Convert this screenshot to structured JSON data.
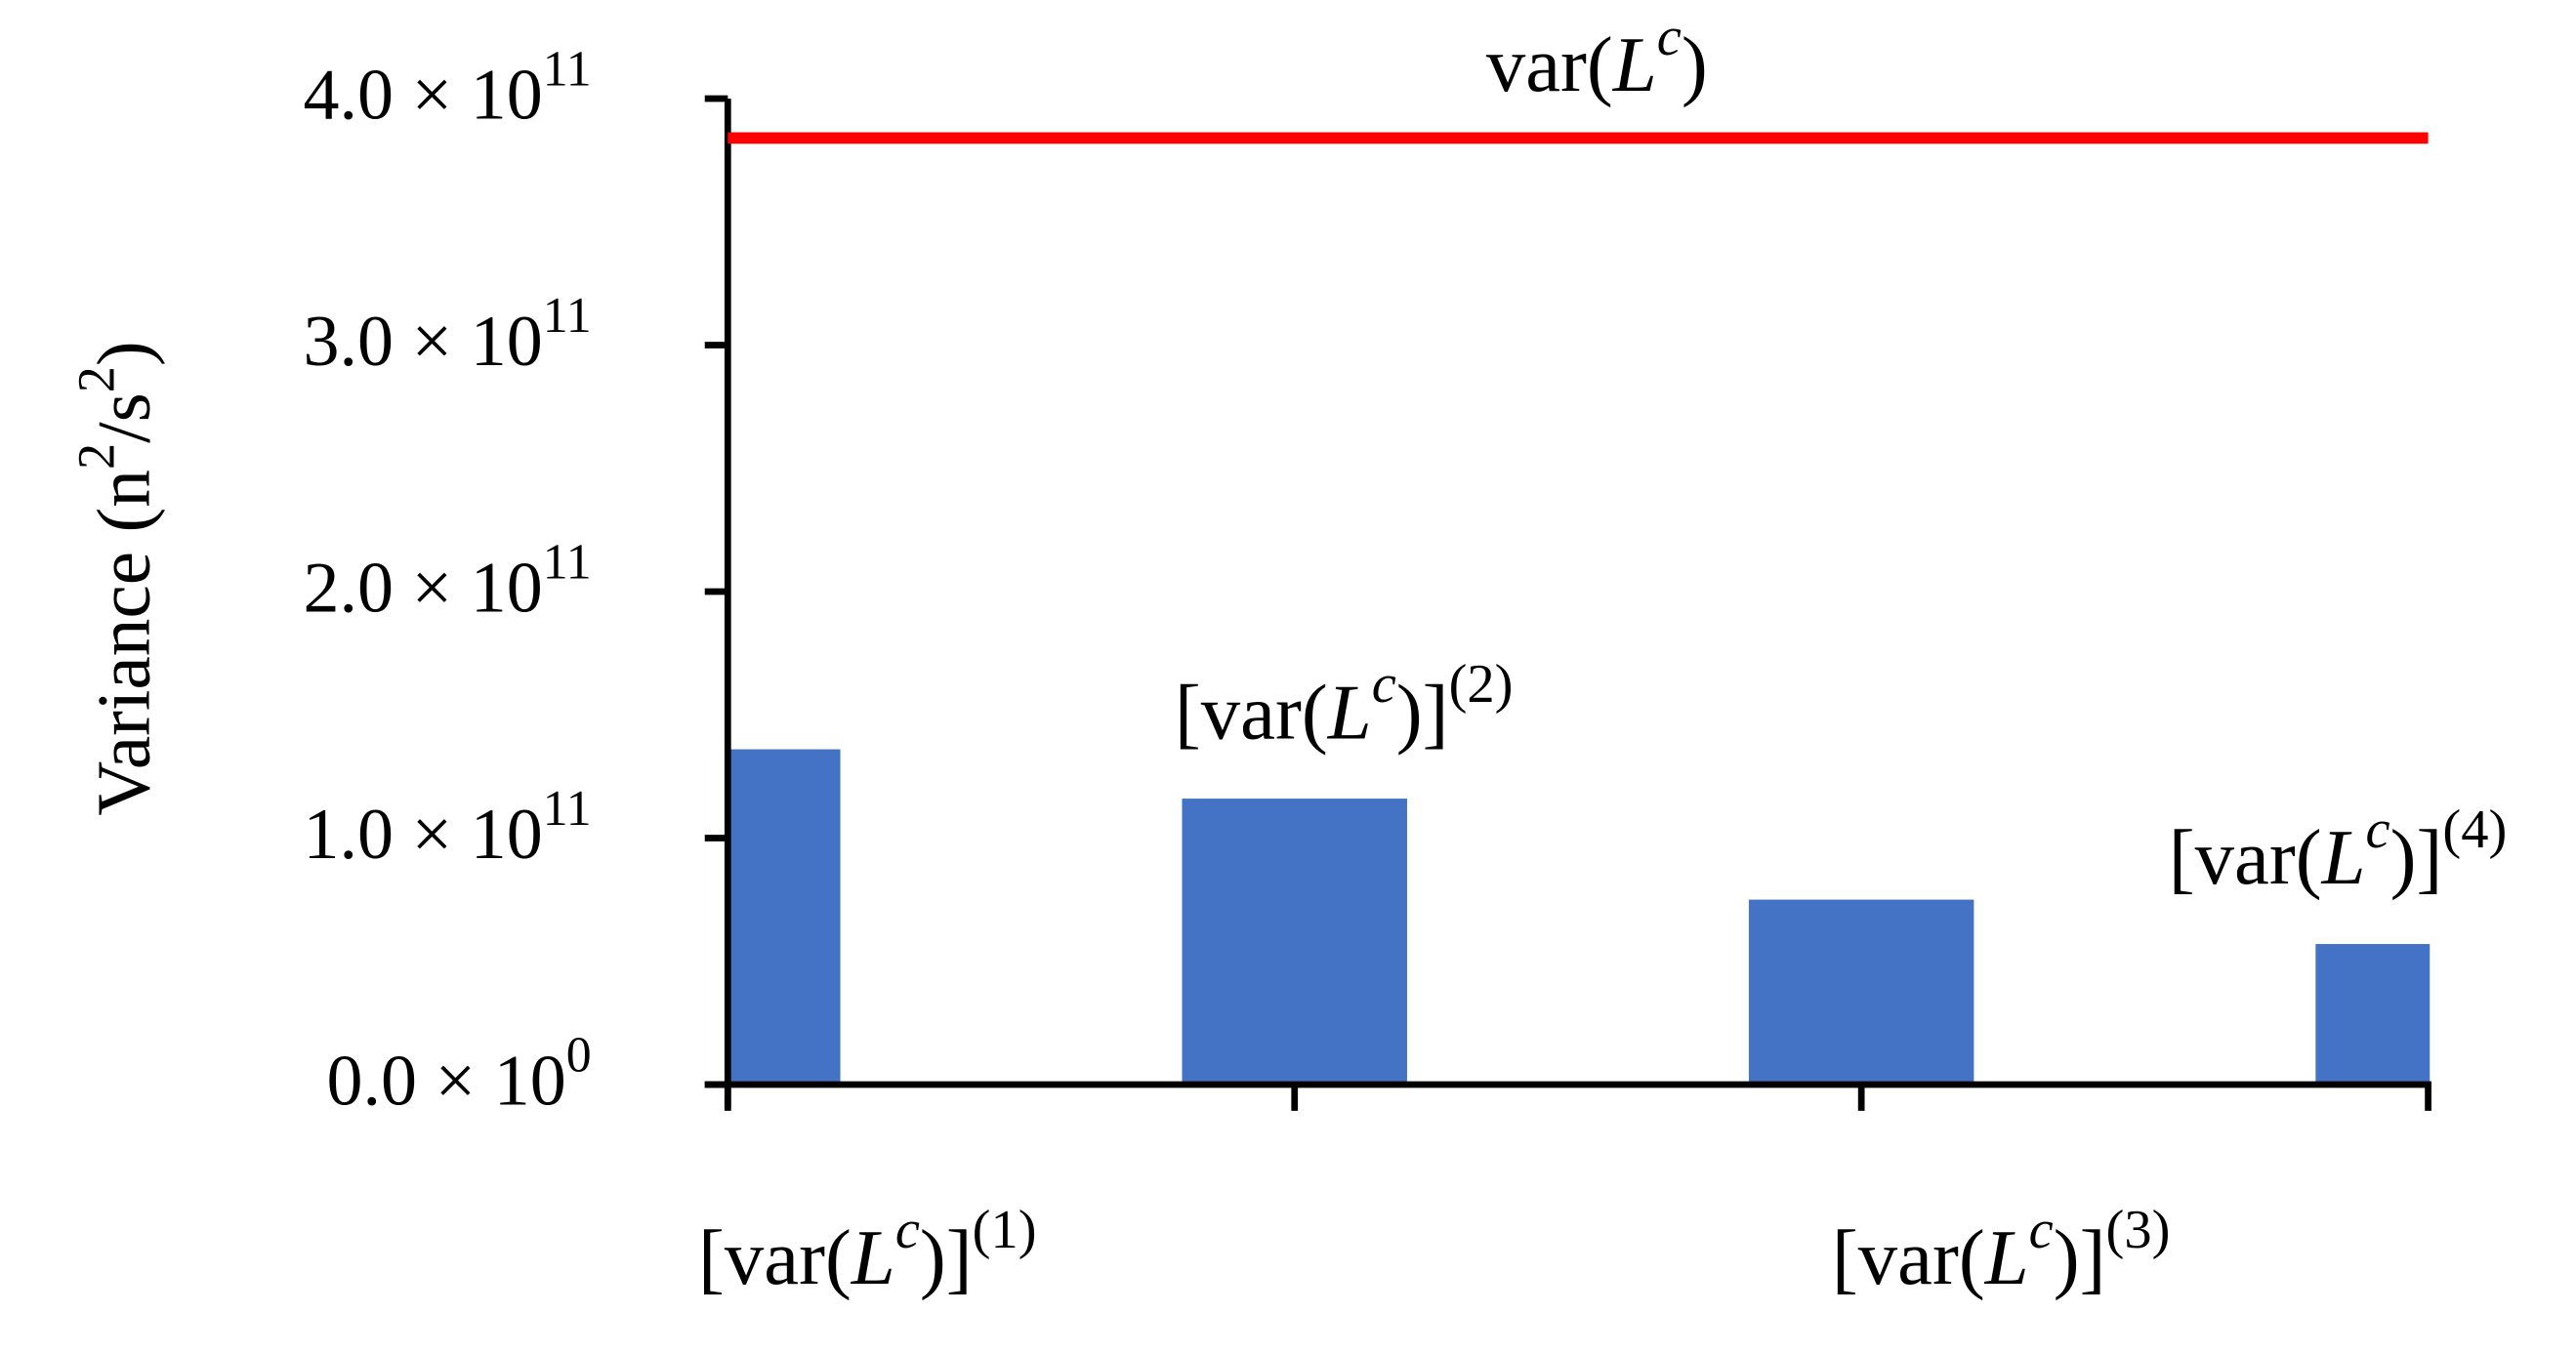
{
  "chart_data": {
    "type": "bar",
    "y_label": "Variance (n2/s2)",
    "categories": [
      "[var(Lc)](1)",
      "[var(Lc)](2)",
      "[var(Lc)](3)",
      "[var(Lc)](4)"
    ],
    "values": [
      136000000000,
      116000000000,
      75000000000,
      57000000000
    ],
    "color": "#4472c4",
    "reference_line": {
      "name": "var(Lc)",
      "value": 384000000000,
      "color": "#ff0000"
    },
    "ylim": [
      0,
      400000000000
    ],
    "yticks": [
      {
        "value": 0,
        "label": "0.0 × 100"
      },
      {
        "value": 100000000000,
        "label": "1.0 × 1011"
      },
      {
        "value": 200000000000,
        "label": "2.0 × 1011"
      },
      {
        "value": 300000000000,
        "label": "3.0 × 1011"
      },
      {
        "value": 400000000000,
        "label": "4.0 × 1011"
      }
    ],
    "grid": false
  }
}
